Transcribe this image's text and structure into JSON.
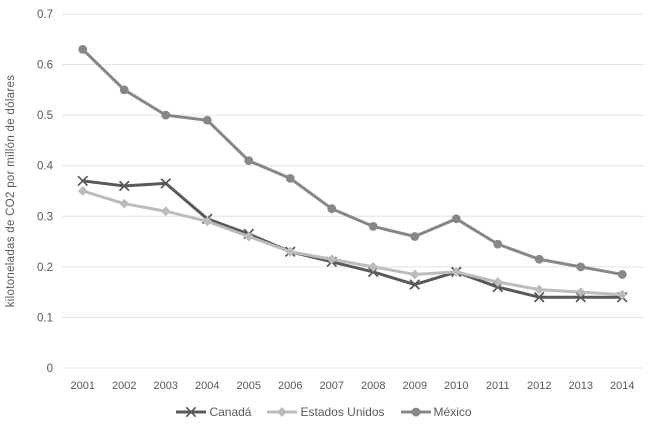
{
  "chart_data": {
    "type": "line",
    "title": "",
    "xlabel": "",
    "ylabel": "kilotoneladas de CO2 por millón de dólares",
    "categories": [
      "2001",
      "2002",
      "2003",
      "2004",
      "2005",
      "2006",
      "2007",
      "2008",
      "2009",
      "2010",
      "2011",
      "2012",
      "2013",
      "2014"
    ],
    "series": [
      {
        "name": "Canadá",
        "marker": "x",
        "color": "#595959",
        "values": [
          0.37,
          0.36,
          0.365,
          0.295,
          0.265,
          0.23,
          0.21,
          0.19,
          0.165,
          0.19,
          0.16,
          0.14,
          0.14,
          0.14
        ]
      },
      {
        "name": "Estados Unidos",
        "marker": "diamond",
        "color": "#bcbcbc",
        "values": [
          0.35,
          0.325,
          0.31,
          0.29,
          0.26,
          0.23,
          0.215,
          0.2,
          0.185,
          0.19,
          0.17,
          0.155,
          0.15,
          0.145
        ]
      },
      {
        "name": "México",
        "marker": "circle",
        "color": "#878787",
        "values": [
          0.63,
          0.55,
          0.5,
          0.49,
          0.41,
          0.375,
          0.315,
          0.28,
          0.26,
          0.295,
          0.245,
          0.215,
          0.2,
          0.185
        ]
      }
    ],
    "ylim": [
      0,
      0.7
    ],
    "ytick_labels": [
      "0",
      "0.1",
      "0.2",
      "0.3",
      "0.4",
      "0.5",
      "0.6",
      "0.7"
    ],
    "grid": true,
    "legend_position": "bottom"
  },
  "colors": {
    "gridline": "#e3e3e3",
    "axis_text": "#595959",
    "background": "#ffffff"
  }
}
